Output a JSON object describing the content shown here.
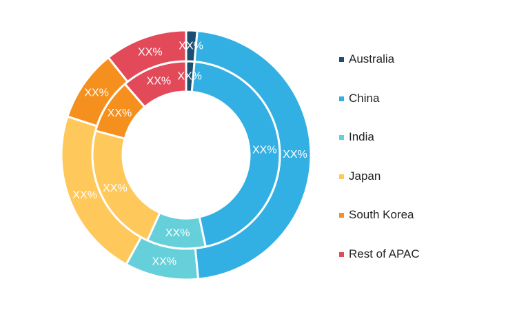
{
  "chart_data": {
    "type": "donut",
    "title": "",
    "legend_position": "right",
    "series": [
      {
        "name": "",
        "ring": "outer",
        "values": [
          1.2,
          39.5,
          8.0,
          18.5,
          7.8,
          9.0
        ],
        "labels": [
          "XX%",
          "XX%",
          "XX%",
          "XX%",
          "XX%",
          "XX%"
        ]
      },
      {
        "name": "",
        "ring": "inner",
        "values": [
          1.2,
          38.0,
          8.5,
          18.8,
          8.0,
          9.5
        ],
        "labels": [
          "XX%",
          "XX%",
          "XX%",
          "XX%",
          "XX%",
          "XX%"
        ]
      }
    ],
    "categories": [
      "Australia",
      "China",
      "India",
      "Japan",
      "South Korea",
      "Rest of APAC"
    ],
    "colors": [
      "#1b4f72",
      "#33b0e3",
      "#66d0da",
      "#ffc85a",
      "#f5901e",
      "#e24a5a"
    ]
  }
}
